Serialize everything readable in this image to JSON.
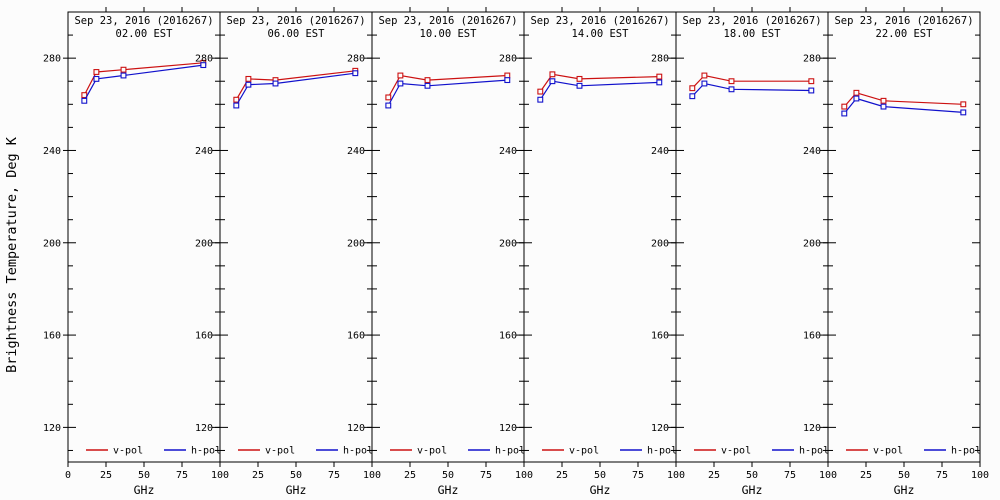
{
  "chart_data": {
    "type": "line",
    "title_date": "Sep 23, 2016 (2016267)",
    "ylabel": "Brightness Temperature, Deg K",
    "xlabel": "GHz",
    "x": [
      10.7,
      18.7,
      36.5,
      89
    ],
    "xlim": [
      0,
      100
    ],
    "ylim": [
      105,
      300
    ],
    "y_major_ticks": [
      280,
      240,
      200,
      160,
      120
    ],
    "y_minor_step": 10,
    "x_major_ticks": [
      0,
      25,
      50,
      75,
      100
    ],
    "x_top_ticks": [
      25,
      50,
      75
    ],
    "legend": [
      {
        "name": "v-pol",
        "color": "#cc1111"
      },
      {
        "name": "h-pol",
        "color": "#1111cc"
      }
    ],
    "panels": [
      {
        "time": "02.00 EST",
        "series": [
          {
            "name": "v-pol",
            "values": [
              264,
              274,
              275,
              278
            ]
          },
          {
            "name": "h-pol",
            "values": [
              261.5,
              271,
              272.5,
              277
            ]
          }
        ]
      },
      {
        "time": "06.00 EST",
        "series": [
          {
            "name": "v-pol",
            "values": [
              262,
              271,
              270.5,
              274.5
            ]
          },
          {
            "name": "h-pol",
            "values": [
              259.5,
              268.5,
              269,
              273.5
            ]
          }
        ]
      },
      {
        "time": "10.00 EST",
        "series": [
          {
            "name": "v-pol",
            "values": [
              263,
              272.5,
              270.5,
              272.5
            ]
          },
          {
            "name": "h-pol",
            "values": [
              259.5,
              269,
              268,
              270.5
            ]
          }
        ]
      },
      {
        "time": "14.00 EST",
        "series": [
          {
            "name": "v-pol",
            "values": [
              265.5,
              273,
              271,
              272
            ]
          },
          {
            "name": "h-pol",
            "values": [
              262,
              270,
              268,
              269.5
            ]
          }
        ]
      },
      {
        "time": "18.00 EST",
        "series": [
          {
            "name": "v-pol",
            "values": [
              267,
              272.5,
              270,
              270
            ]
          },
          {
            "name": "h-pol",
            "values": [
              263.5,
              269,
              266.5,
              266
            ]
          }
        ]
      },
      {
        "time": "22.00 EST",
        "series": [
          {
            "name": "v-pol",
            "values": [
              259,
              265,
              261.5,
              260
            ]
          },
          {
            "name": "h-pol",
            "values": [
              256,
              262.5,
              259,
              256.5
            ]
          }
        ]
      }
    ]
  },
  "colors": {
    "v_pol": "#cc1111",
    "h_pol": "#1111cc",
    "frame": "#000000",
    "background": "#fcfcfc"
  }
}
